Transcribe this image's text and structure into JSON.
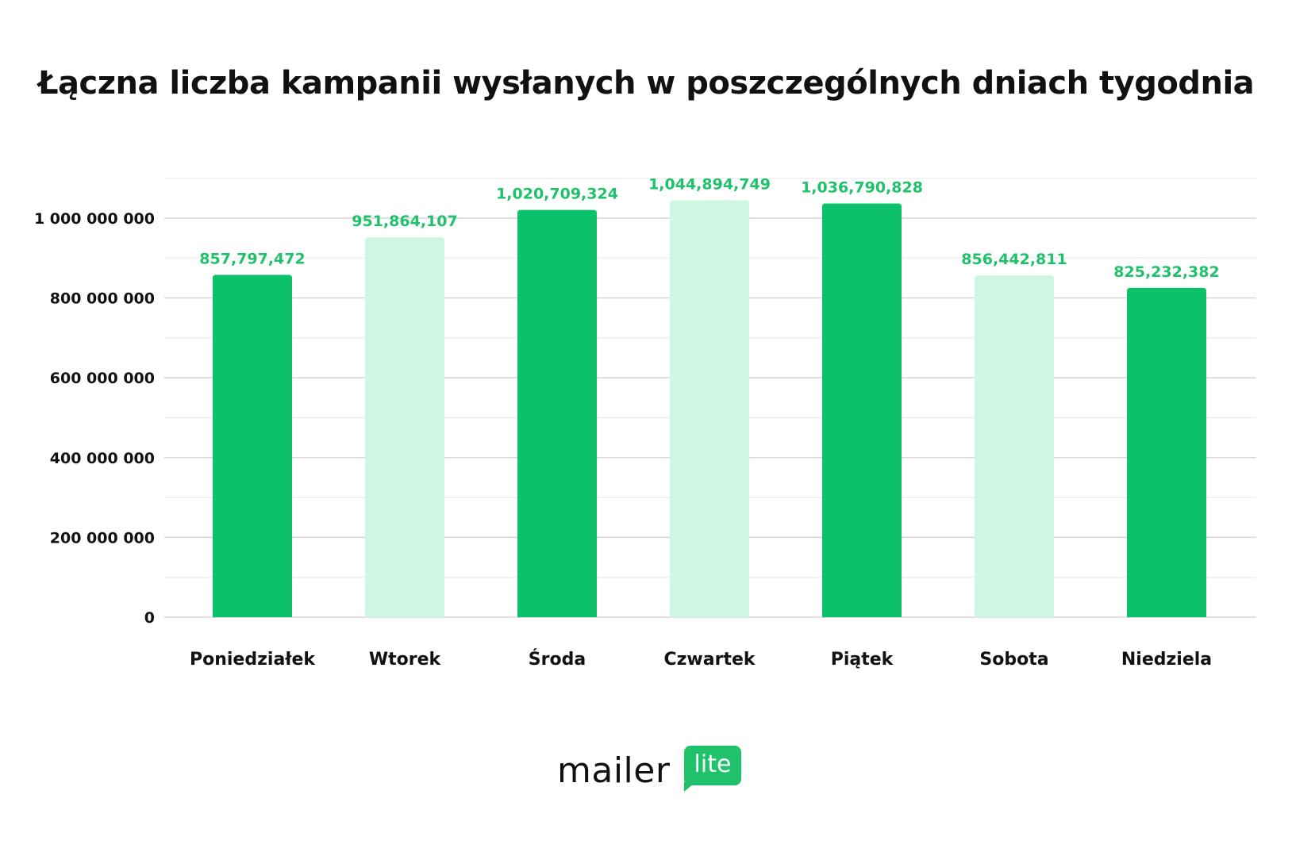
{
  "chart_data": {
    "type": "bar",
    "title": "Łączna liczba kampanii wysłanych w poszczególnych dniach tygodnia",
    "xlabel": "",
    "ylabel": "",
    "categories": [
      "Poniedziałek",
      "Wtorek",
      "Środa",
      "Czwartek",
      "Piątek",
      "Sobota",
      "Niedziela"
    ],
    "values": [
      857797472,
      951864107,
      1020709324,
      1044894749,
      1036790828,
      856442811,
      825232382
    ],
    "value_labels": [
      "857,797,472",
      "951,864,107",
      "1,020,709,324",
      "1,044,894,749",
      "1,036,790,828",
      "856,442,811",
      "825,232,382"
    ],
    "ylim": [
      0,
      1100000000
    ],
    "yticks": [
      0,
      200000000,
      400000000,
      600000000,
      800000000,
      1000000000
    ],
    "ytick_labels": [
      "0",
      "200 000 000",
      "400 000 000",
      "600 000 000",
      "800 000 000",
      "1 000 000 000"
    ],
    "grid": true,
    "legend": "none",
    "colors": {
      "dark": "#0bc16a",
      "light": "#cff5e3",
      "label": "#1fc16b"
    },
    "bar_color_pattern": [
      "dark",
      "light",
      "dark",
      "light",
      "dark",
      "light",
      "dark"
    ]
  },
  "logo": {
    "word": "mailer",
    "badge": "lite"
  }
}
